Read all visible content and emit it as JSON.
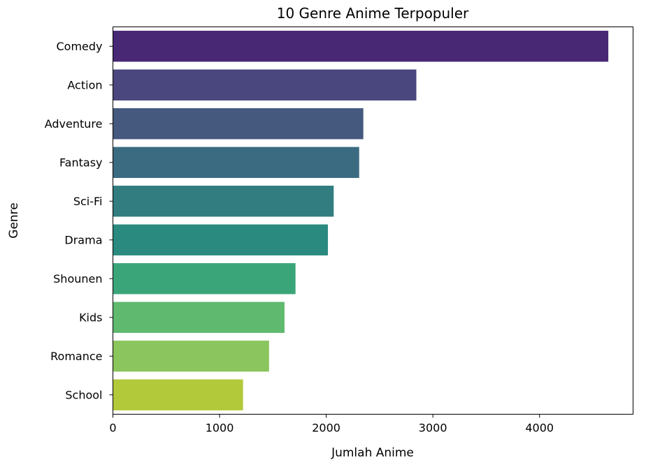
{
  "chart_data": {
    "type": "bar",
    "orientation": "horizontal",
    "title": "10 Genre Anime Terpopuler",
    "xlabel": "Jumlah Anime",
    "ylabel": "Genre",
    "categories": [
      "Comedy",
      "Action",
      "Adventure",
      "Fantasy",
      "Sci-Fi",
      "Drama",
      "Shounen",
      "Kids",
      "Romance",
      "School"
    ],
    "values": [
      4645,
      2845,
      2348,
      2309,
      2070,
      2016,
      1712,
      1609,
      1464,
      1220
    ],
    "xlim": [
      0,
      4877
    ],
    "xticks": [
      0,
      1000,
      2000,
      3000,
      4000
    ],
    "grid": false,
    "palette": "viridis",
    "colors": [
      "#482878",
      "#472F7D",
      "#3E4A89",
      "#31688E",
      "#2A788E",
      "#21918C",
      "#22A884",
      "#44BF70",
      "#7AD151",
      "#BDDF26"
    ],
    "bar_colors": [
      "#482875",
      "#4A467E",
      "#45597F",
      "#3B6B81",
      "#317D80",
      "#2B8A7F",
      "#3BA57A",
      "#5FB96E",
      "#8BC55D",
      "#B2C93A"
    ]
  }
}
